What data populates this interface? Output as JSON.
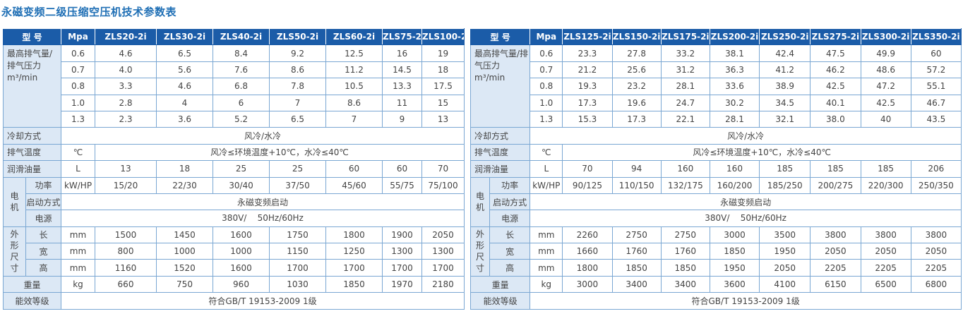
{
  "page_title": "永磁变频二级压缩空压机技术参数表",
  "table1": {
    "header": {
      "model": "型  号",
      "unit": "Mpa",
      "models": [
        "ZLS20-2i",
        "ZLS30-2i",
        "ZLS40-2i",
        "ZLS50-2i",
        "ZLS60-2i",
        "ZLS75-2i",
        "ZLS100-2i"
      ]
    },
    "flow_label": "最高排气量/排气压力",
    "flow_unit": "m³/min",
    "pressures": [
      "0.6",
      "0.7",
      "0.8",
      "1.0",
      "1.3"
    ],
    "flow_rows": [
      [
        "4.6",
        "6.5",
        "8.4",
        "9.2",
        "12.5",
        "16",
        "19"
      ],
      [
        "4.0",
        "5.6",
        "7.6",
        "8.6",
        "11.2",
        "14.5",
        "18"
      ],
      [
        "3.3",
        "4.6",
        "6.8",
        "7.8",
        "10.5",
        "13.3",
        "17.5"
      ],
      [
        "2.8",
        "4",
        "6",
        "7",
        "8.6",
        "11",
        "15"
      ],
      [
        "2.3",
        "3.6",
        "5.2",
        "6.5",
        "7",
        "9",
        "13"
      ]
    ],
    "cooling": {
      "label": "冷却方式",
      "value": "风冷/水冷"
    },
    "temp": {
      "label": "排气温度",
      "unit": "℃",
      "value": "风冷≤环境温度+10℃，水冷≤40℃"
    },
    "oil": {
      "label": "润滑油量",
      "unit": "L",
      "values": [
        "13",
        "18",
        "25",
        "25",
        "60",
        "60",
        "70"
      ]
    },
    "motor": {
      "label": "电机",
      "power_label": "功率",
      "power_unit": "kW/HP",
      "power_values": [
        "15/20",
        "22/30",
        "30/40",
        "37/50",
        "45/60",
        "55/75",
        "75/100"
      ],
      "start_label": "启动方式",
      "start_value": "永磁变频启动",
      "supply_label": "电源",
      "supply_value": "380V/    50Hz/60Hz"
    },
    "dims": {
      "label": "外形尺寸",
      "unit": "mm",
      "length_label": "长",
      "length": [
        "1500",
        "1450",
        "1600",
        "1750",
        "1800",
        "1900",
        "2050"
      ],
      "width_label": "宽",
      "width": [
        "800",
        "1000",
        "1000",
        "1150",
        "1250",
        "1300",
        "1300"
      ],
      "height_label": "高",
      "height": [
        "1160",
        "1520",
        "1600",
        "1700",
        "1700",
        "1700",
        "1700"
      ]
    },
    "weight": {
      "label": "重量",
      "unit": "kg",
      "values": [
        "660",
        "750",
        "960",
        "1030",
        "1850",
        "1970",
        "2180"
      ]
    },
    "efficiency": {
      "label": "能效等级",
      "value": "符合GB/T 19153-2009 1级"
    }
  },
  "table2": {
    "header": {
      "model": "型  号",
      "unit": "Mpa",
      "models": [
        "ZLS125-2i",
        "ZLS150-2i",
        "ZLS175-2i",
        "ZLS200-2i",
        "ZLS250-2i",
        "ZLS275-2i",
        "ZLS300-2i",
        "ZLS350-2i"
      ]
    },
    "flow_label": "最高排气量/排气压力",
    "flow_unit": "m³/min",
    "pressures": [
      "0.6",
      "0.7",
      "0.8",
      "1.0",
      "1.3"
    ],
    "flow_rows": [
      [
        "23.3",
        "27.8",
        "33.2",
        "38.1",
        "42.4",
        "47.5",
        "49.9",
        "60"
      ],
      [
        "21.2",
        "25.6",
        "31.2",
        "36.3",
        "41.2",
        "46.2",
        "48.6",
        "57.2"
      ],
      [
        "19.3",
        "23.2",
        "28.1",
        "33.6",
        "38.9",
        "42.5",
        "47.2",
        "55.1"
      ],
      [
        "17.3",
        "19.6",
        "24.7",
        "30.2",
        "34.5",
        "40.1",
        "42.5",
        "46.7"
      ],
      [
        "15.3",
        "17.3",
        "22.1",
        "28.1",
        "32.1",
        "38.0",
        "40",
        "43.5"
      ]
    ],
    "cooling": {
      "label": "冷却方式",
      "value": "风冷/水冷"
    },
    "temp": {
      "label": "排气温度",
      "unit": "℃",
      "value": "风冷≤环境温度+10℃，水冷≤40℃"
    },
    "oil": {
      "label": "润滑油量",
      "unit": "L",
      "values": [
        "70",
        "94",
        "160",
        "160",
        "185",
        "185",
        "185",
        "206"
      ]
    },
    "motor": {
      "label": "电机",
      "power_label": "功率",
      "power_unit": "kW/HP",
      "power_values": [
        "90/125",
        "110/150",
        "132/175",
        "160/200",
        "185/250",
        "200/275",
        "220/300",
        "250/350"
      ],
      "start_label": "启动方式",
      "start_value": "永磁变频启动",
      "supply_label": "电源",
      "supply_value": "380V/    50Hz/60Hz"
    },
    "dims": {
      "label": "外形尺寸",
      "unit": "mm",
      "length_label": "长",
      "length": [
        "2260",
        "2750",
        "2750",
        "3000",
        "3500",
        "3800",
        "3800",
        "3800"
      ],
      "width_label": "宽",
      "width": [
        "1660",
        "1760",
        "1760",
        "1850",
        "1950",
        "2050",
        "2050",
        "2050"
      ],
      "height_label": "高",
      "height": [
        "1800",
        "1850",
        "1850",
        "1950",
        "2050",
        "2205",
        "2205",
        "2205"
      ]
    },
    "weight": {
      "label": "重量",
      "unit": "kg",
      "values": [
        "3000",
        "3400",
        "3400",
        "3600",
        "4100",
        "6150",
        "6500",
        "6800"
      ]
    },
    "efficiency": {
      "label": "能效等级",
      "value": "符合GB/T 19153-2009 1级"
    }
  }
}
